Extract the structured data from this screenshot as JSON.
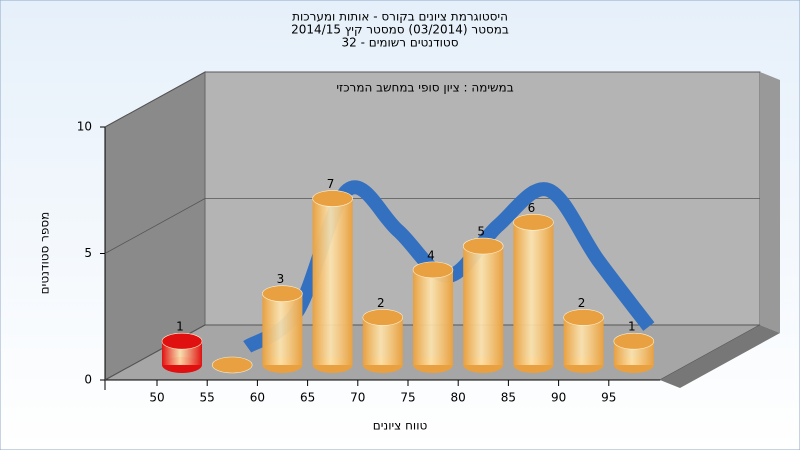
{
  "chart_data": {
    "type": "bar",
    "title": "היסטוגרמת ציונים בקורס - אותות ומערכות",
    "subtitle": "במסטר (03/2014) סמסטר קיץ 2014/15",
    "subtitle2": "סטודנטים רשומים - 32",
    "annotation": "במשימה : ציון סופי במחשב המרכזי",
    "xlabel": "טווח ציונים",
    "ylabel": "מספר סטודנטים",
    "categories": [
      "50",
      "55",
      "60",
      "65",
      "70",
      "75",
      "80",
      "85",
      "90",
      "95"
    ],
    "values": [
      1,
      0,
      3,
      7,
      2,
      4,
      5,
      6,
      2,
      1
    ],
    "colors": [
      "#e01010",
      "#e8a040",
      "#e8a040",
      "#e8a040",
      "#e8a040",
      "#e8a040",
      "#e8a040",
      "#e8a040",
      "#e8a040",
      "#e8a040"
    ],
    "line_values": [
      null,
      0.6,
      2,
      6.8,
      5.2,
      3.4,
      5.4,
      6.8,
      4,
      1.4
    ],
    "line_color": "#3470c0",
    "ylim": [
      0,
      10
    ],
    "yticks": [
      0,
      5,
      10
    ],
    "grid": true
  }
}
